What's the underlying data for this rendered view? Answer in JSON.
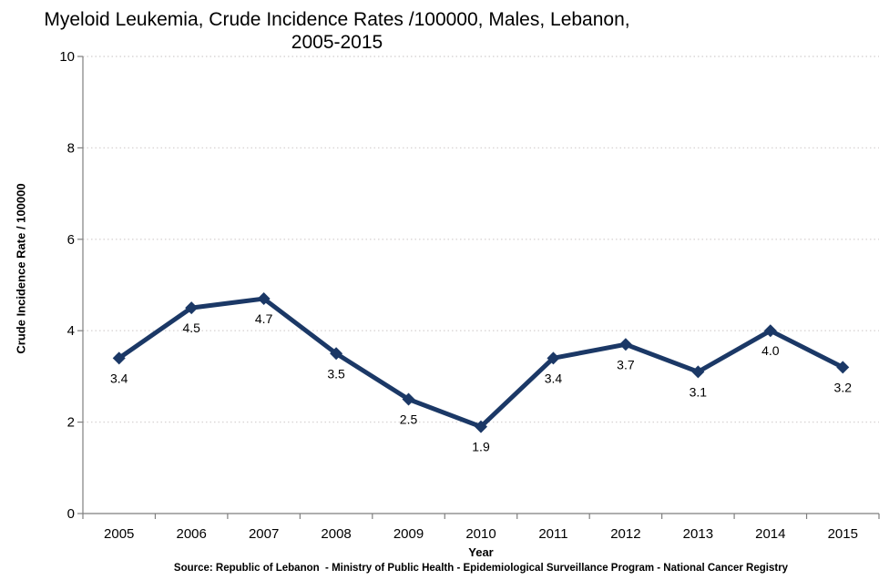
{
  "header": {
    "title_line1": "Myeloid Leukemia, Crude Incidence Rates /100000, Males, Lebanon,",
    "title_line2": "2005-2015"
  },
  "chart_data": {
    "type": "line",
    "title": "Myeloid Leukemia, Crude Incidence Rates /100000, Males, Lebanon, 2005-2015",
    "categories": [
      "2005",
      "2006",
      "2007",
      "2008",
      "2009",
      "2010",
      "2011",
      "2012",
      "2013",
      "2014",
      "2015"
    ],
    "values": [
      3.4,
      4.5,
      4.7,
      3.5,
      2.5,
      1.9,
      3.4,
      3.7,
      3.1,
      4.0,
      3.2
    ],
    "data_labels": [
      "3.4",
      "4.5",
      "4.7",
      "3.5",
      "2.5",
      "1.9",
      "3.4",
      "3.7",
      "3.1",
      "4.0",
      "3.2"
    ],
    "xlabel": "Year",
    "ylabel": "Crude Incidence Rate / 100000",
    "ylim": [
      0,
      10
    ],
    "yticks": [
      0,
      2,
      4,
      6,
      8,
      10
    ],
    "grid": "horizontal dotted",
    "legend": "none",
    "marker": "diamond",
    "colors": {
      "series": "#1B3866",
      "gridline": "#D9D5D5",
      "axis": "#7F7F7F",
      "text": "#000000"
    }
  },
  "footer": {
    "source": "Source: Republic of Lebanon  - Ministry of Public Health - Epidemiological Surveillance Program - National Cancer Registry"
  }
}
